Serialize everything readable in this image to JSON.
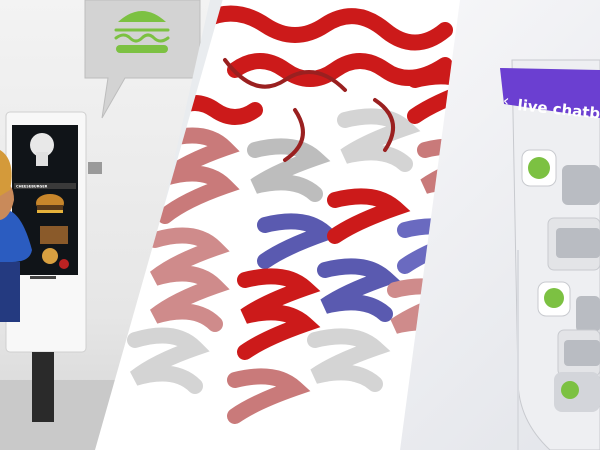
{
  "kiosk": {
    "speech_bubble_icon": "burger-icon",
    "screen_header": "CHEESEBURGER"
  },
  "protein": {
    "description_icon": "protein-helices",
    "colors": {
      "red": "#cc1a1a",
      "pink": "#c97a7a",
      "white": "#d4d4d4",
      "blue": "#5a5ab0"
    }
  },
  "chatbot": {
    "header_label": "live chatbot",
    "back_icon": "chevron-left-icon",
    "accent": "#6b3fd1",
    "user_icon": "user-icon",
    "user_icon_color": "#7cc142"
  }
}
